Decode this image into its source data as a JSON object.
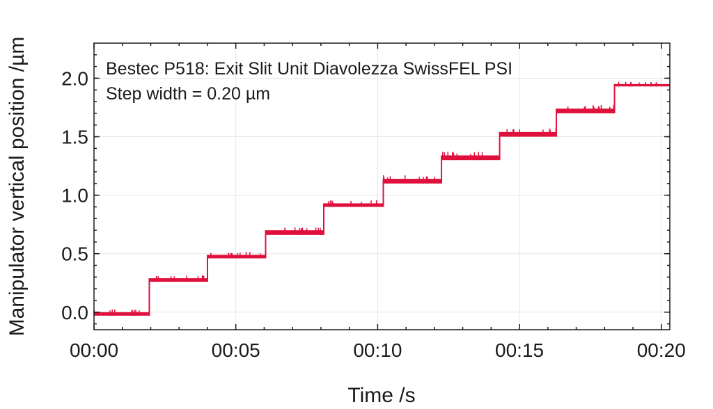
{
  "chart_data": {
    "type": "line",
    "title": "",
    "xlabel": "Time /s",
    "ylabel": "Manipulator vertical position /µm",
    "annotations": [
      "Bestec P518: Exit Slit Unit Diavolezza SwissFEL PSI",
      "Step width = 0.20 µm"
    ],
    "xlim": [
      0,
      20.3
    ],
    "ylim": [
      -0.15,
      2.3
    ],
    "x_ticks": [
      0,
      5,
      10,
      15,
      20
    ],
    "x_tick_labels": [
      "00:00",
      "00:05",
      "00:10",
      "00:15",
      "00:20"
    ],
    "y_ticks": [
      0.0,
      0.5,
      1.0,
      1.5,
      2.0
    ],
    "y_tick_labels": [
      "0.0",
      "0.5",
      "1.0",
      "1.5",
      "2.0"
    ],
    "grid": true,
    "color": "#e0103c",
    "series": [
      {
        "name": "Manipulator vertical position",
        "steps": [
          {
            "t_start": 0.0,
            "t_end": 1.95,
            "low": -0.03,
            "high": 0.0
          },
          {
            "t_start": 1.95,
            "t_end": 4.0,
            "low": 0.26,
            "high": 0.29
          },
          {
            "t_start": 4.0,
            "t_end": 6.05,
            "low": 0.46,
            "high": 0.49
          },
          {
            "t_start": 6.05,
            "t_end": 8.1,
            "low": 0.66,
            "high": 0.7
          },
          {
            "t_start": 8.1,
            "t_end": 10.2,
            "low": 0.9,
            "high": 0.93
          },
          {
            "t_start": 10.2,
            "t_end": 12.25,
            "low": 1.1,
            "high": 1.14
          },
          {
            "t_start": 12.25,
            "t_end": 14.3,
            "low": 1.3,
            "high": 1.34
          },
          {
            "t_start": 14.3,
            "t_end": 16.3,
            "low": 1.5,
            "high": 1.54
          },
          {
            "t_start": 16.3,
            "t_end": 18.35,
            "low": 1.7,
            "high": 1.74
          },
          {
            "t_start": 18.35,
            "t_end": 20.3,
            "low": 1.93,
            "high": 1.95
          }
        ]
      }
    ]
  }
}
